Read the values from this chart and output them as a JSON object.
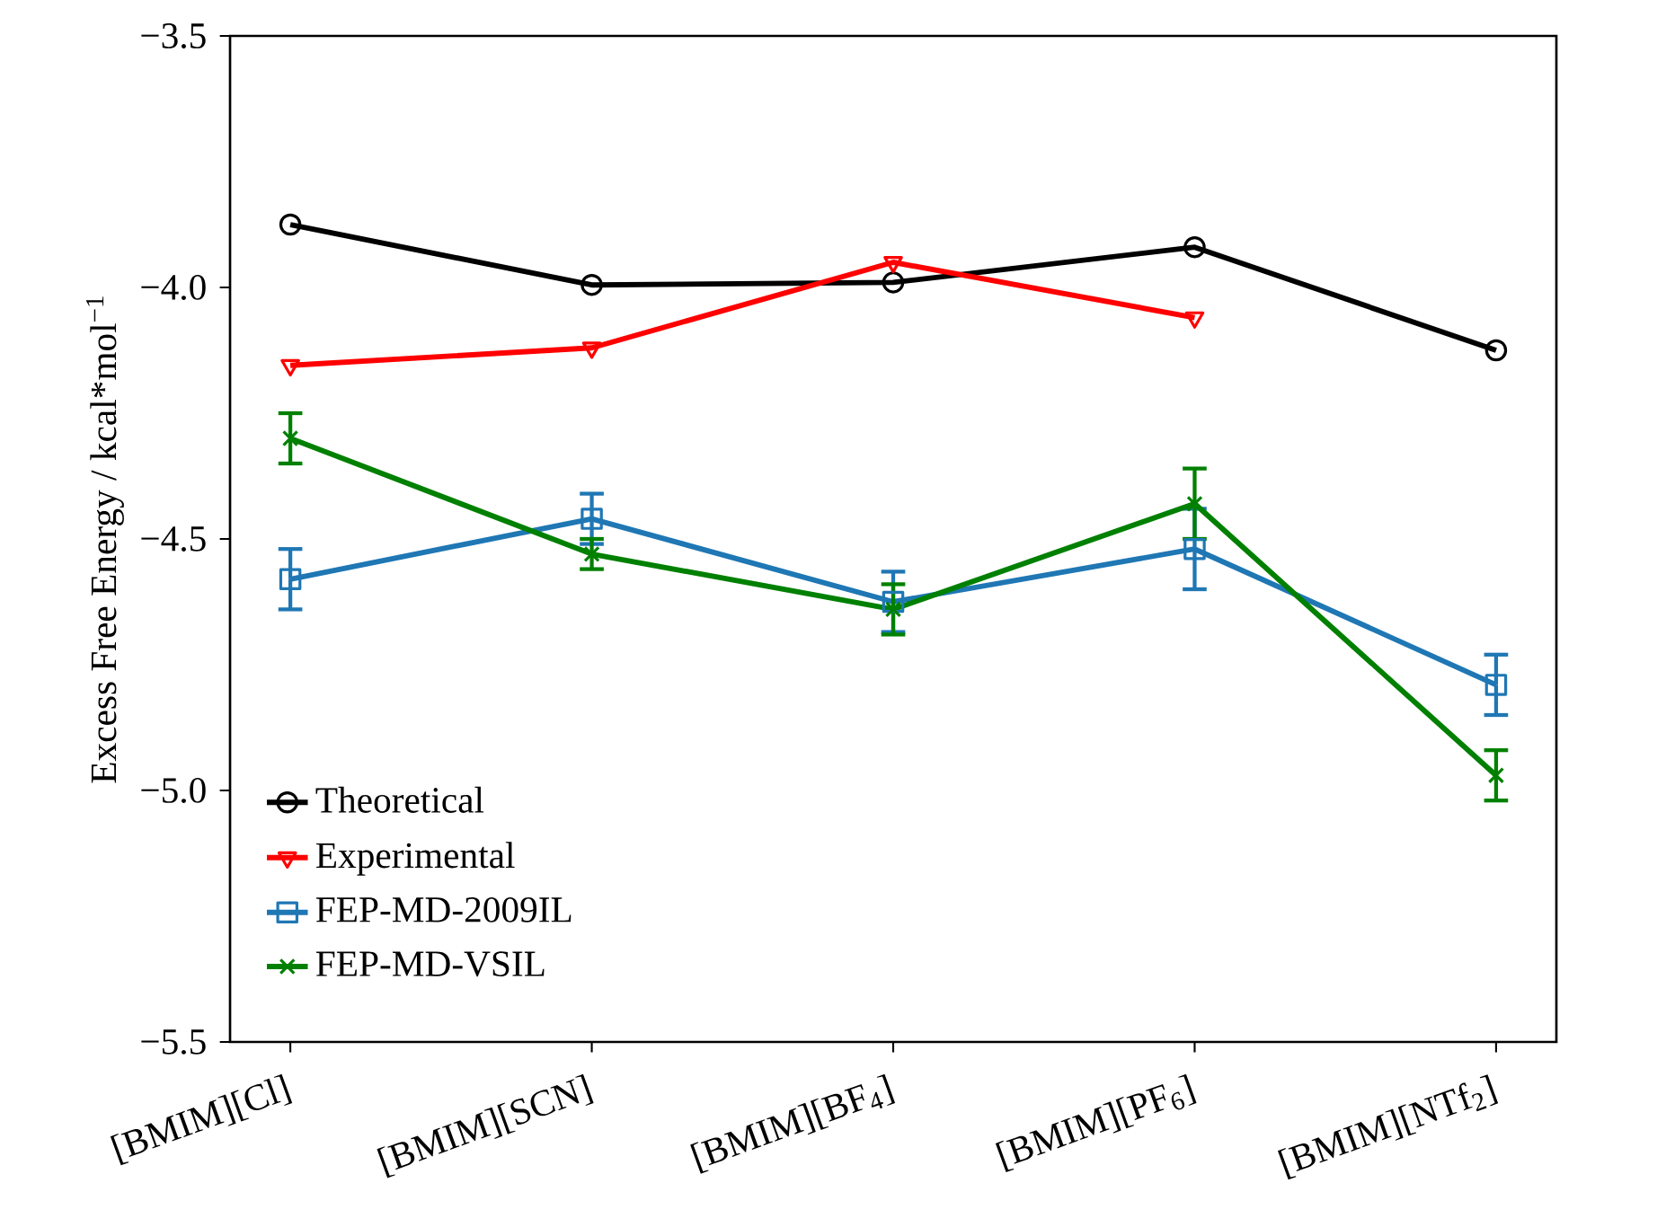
{
  "chart_data": {
    "type": "line",
    "ylabel": "Excess Free Energy / kcal*mol$^{−1}$",
    "categories": [
      "[BMIM][Cl]",
      "[BMIM][SCN]",
      "[BMIM][BF$_{4}$]",
      "[BMIM][PF$_{6}$]",
      "[BMIM][NTf$_{2}$]"
    ],
    "ylim": [
      -5.5,
      -3.5
    ],
    "yticks": [
      {
        "value": -5.5,
        "label": "−5.5"
      },
      {
        "value": -5.0,
        "label": "−5.0"
      },
      {
        "value": -4.5,
        "label": "−4.5"
      },
      {
        "value": -4.0,
        "label": "−4.0"
      },
      {
        "value": -3.5,
        "label": "−3.5"
      }
    ],
    "legend": "bottom left",
    "grid": false,
    "series": [
      {
        "name": "Theoretical",
        "color": "#000000",
        "marker": "circle",
        "values": [
          -3.875,
          -3.995,
          -3.99,
          -3.92,
          -4.125
        ]
      },
      {
        "name": "Experimental",
        "color": "#ff0000",
        "marker": "triangle",
        "values": [
          -4.155,
          -4.12,
          -3.95,
          -4.06,
          null
        ]
      },
      {
        "name": "FEP-MD-2009IL",
        "color": "#1f77b4",
        "marker": "square",
        "values": [
          -4.58,
          -4.46,
          -4.625,
          -4.52,
          -4.79
        ],
        "errors": [
          0.06,
          0.05,
          0.06,
          0.08,
          0.06
        ]
      },
      {
        "name": "FEP-MD-VSIL",
        "color": "#008000",
        "marker": "cross",
        "values": [
          -4.3,
          -4.53,
          -4.64,
          -4.43,
          -4.97
        ],
        "errors": [
          0.05,
          0.03,
          0.05,
          0.07,
          0.05
        ]
      }
    ]
  }
}
